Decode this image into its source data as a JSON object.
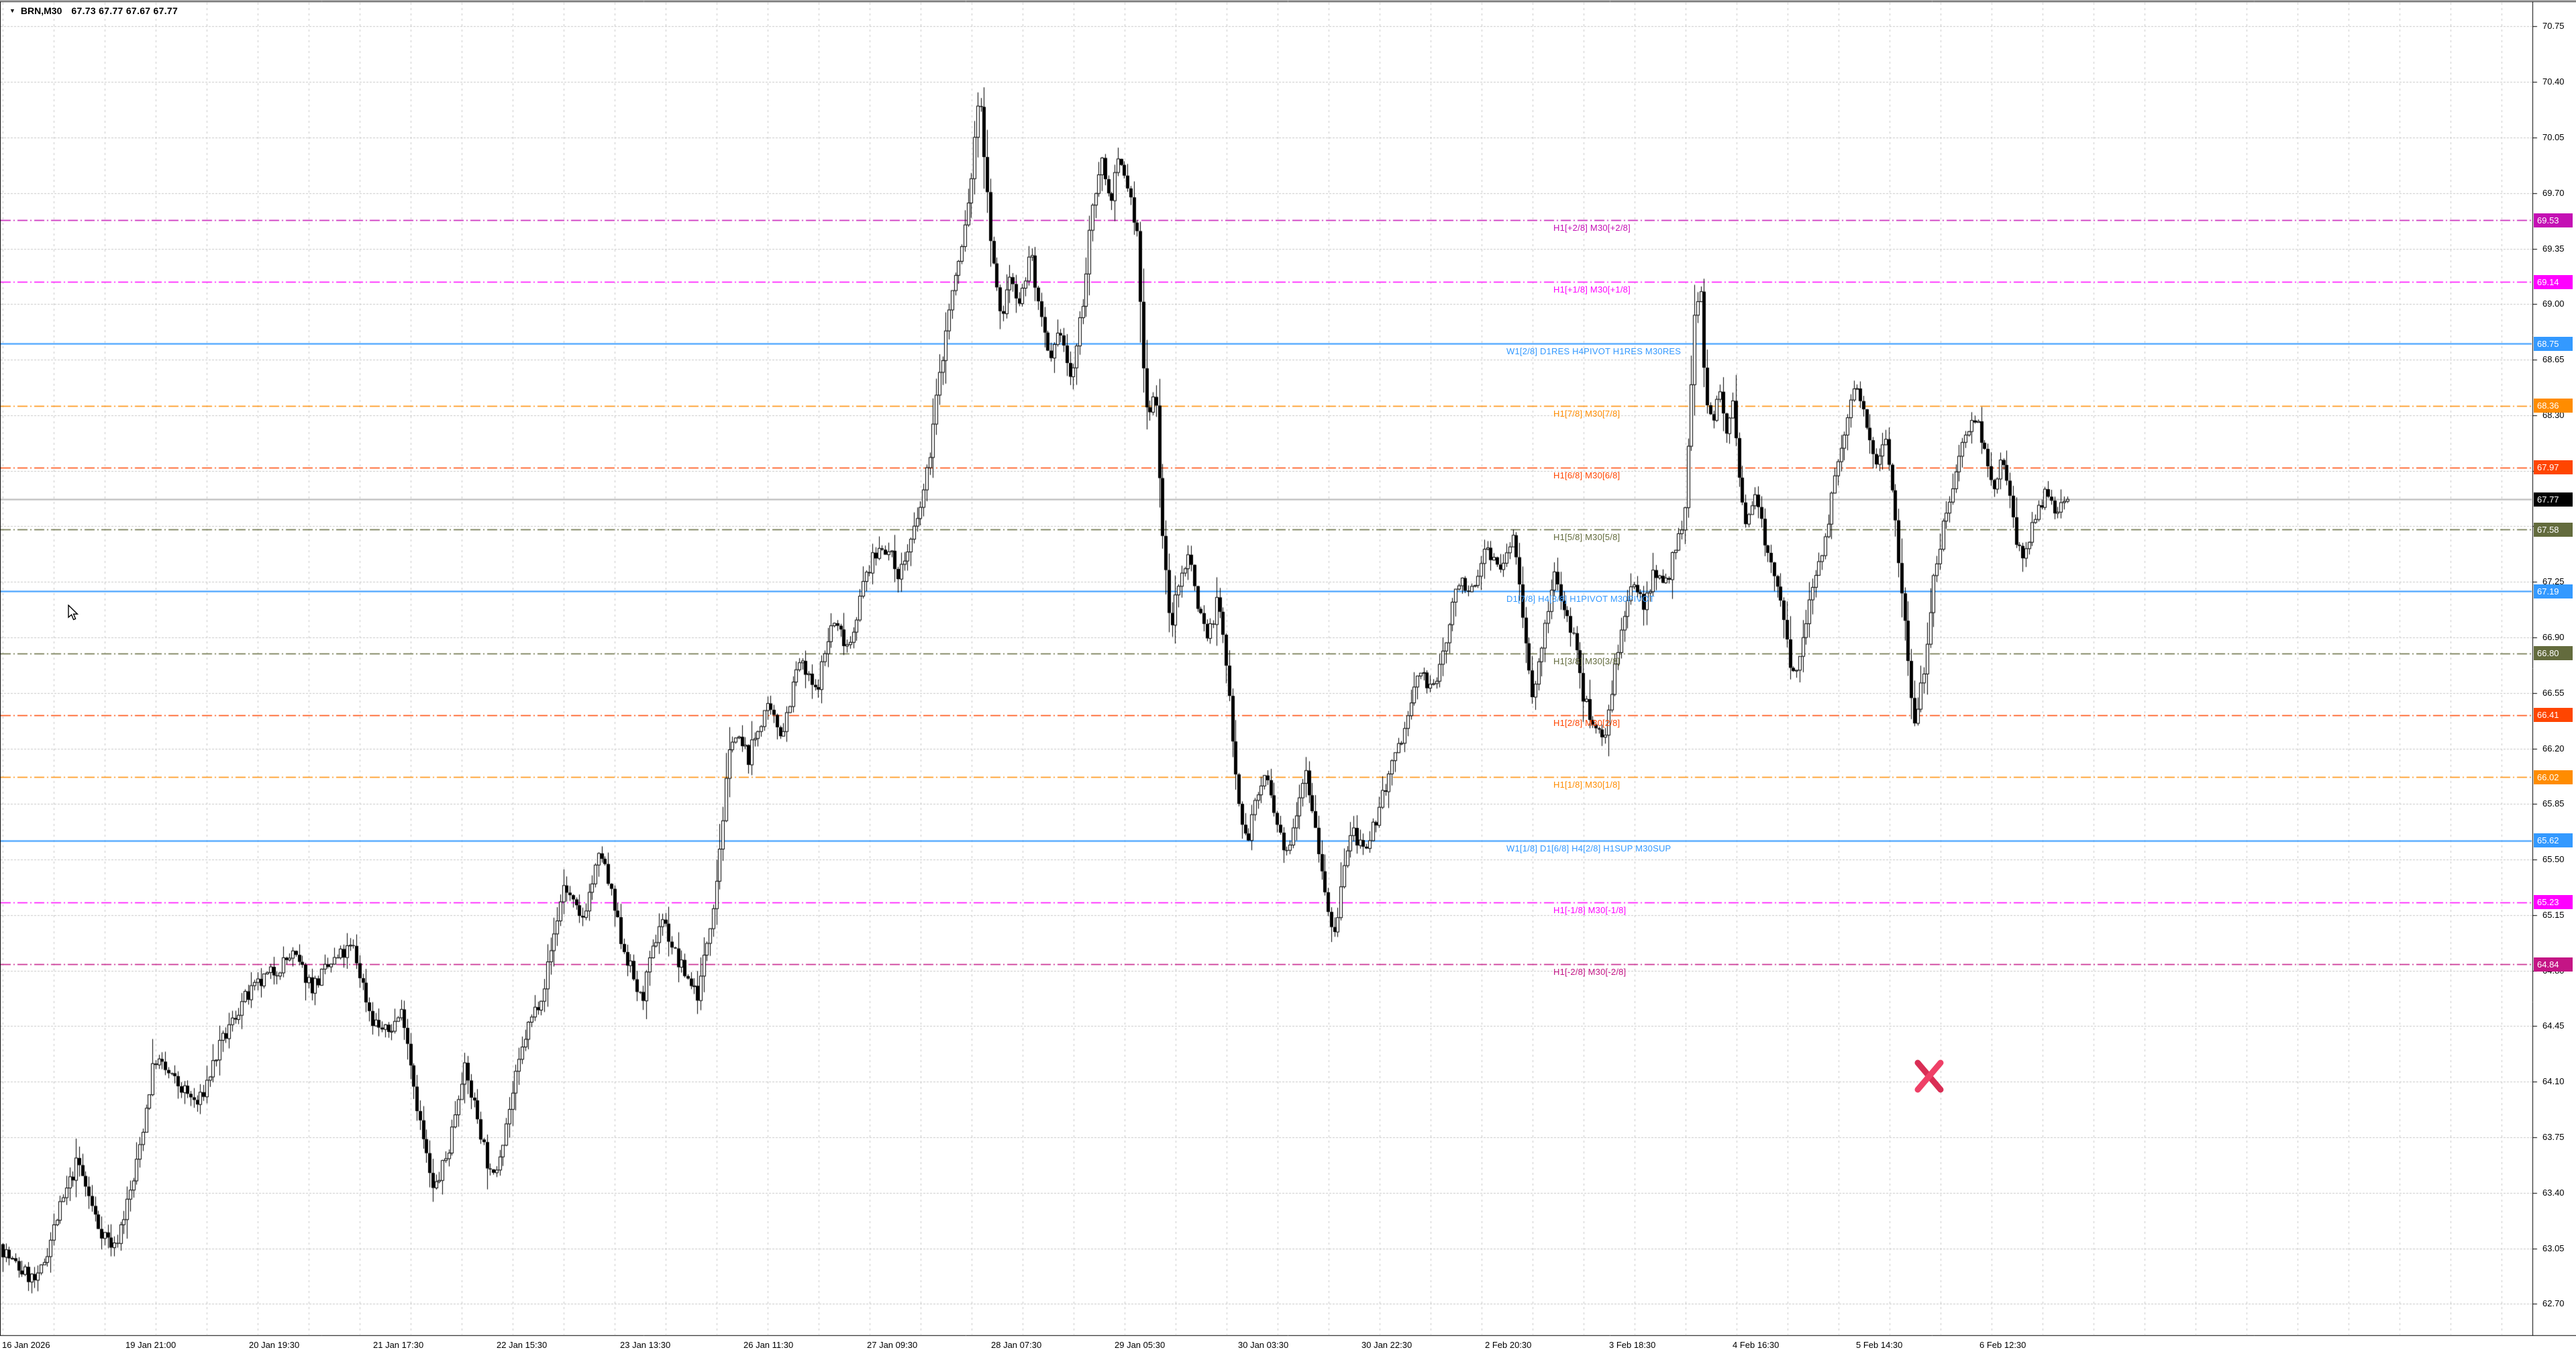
{
  "window": {
    "dropdown_icon": "▼",
    "symbol_period": "BRN,M30",
    "ohlc_text": "67.73 67.77 67.67 67.77"
  },
  "price_axis": {
    "ticks": [
      "70.75",
      "70.40",
      "70.05",
      "69.70",
      "69.35",
      "69.00",
      "68.65",
      "68.30",
      "67.95",
      "67.60",
      "67.25",
      "66.90",
      "66.55",
      "66.20",
      "65.85",
      "65.50",
      "65.15",
      "64.80",
      "64.45",
      "64.10",
      "63.75",
      "63.40",
      "63.05",
      "62.70"
    ]
  },
  "time_axis": {
    "labels": [
      "16 Jan 2026",
      "19 Jan 21:00",
      "20 Jan 19:30",
      "21 Jan 17:30",
      "22 Jan 15:30",
      "23 Jan 13:30",
      "26 Jan 11:30",
      "27 Jan 09:30",
      "28 Jan 07:30",
      "29 Jan 05:30",
      "30 Jan 03:30",
      "30 Jan 22:30",
      "2 Feb 20:30",
      "3 Feb 18:30",
      "4 Feb 16:30",
      "5 Feb 14:30",
      "6 Feb 12:30"
    ]
  },
  "levels": [
    {
      "price": 69.53,
      "badge": "69.53",
      "label": "H1[+2/8] M30[+2/8]",
      "color": "#c40fb4",
      "style": "dashdot"
    },
    {
      "price": 69.14,
      "badge": "69.14",
      "label": "H1[+1/8] M30[+1/8]",
      "color": "#ff00ff",
      "style": "dashdot"
    },
    {
      "price": 68.75,
      "badge": "68.75",
      "label": "W1[2/8] D1RES H4PIVOT H1RES M30RES",
      "color": "#3399ff",
      "style": "solid"
    },
    {
      "price": 68.36,
      "badge": "68.36",
      "label": "H1[7/8] M30[7/8]",
      "color": "#ff8c00",
      "style": "dashdot"
    },
    {
      "price": 67.97,
      "badge": "67.97",
      "label": "H1[6/8] M30[6/8]",
      "color": "#ff4500",
      "style": "dashdot"
    },
    {
      "price": 67.58,
      "badge": "67.58",
      "label": "H1[5/8] M30[5/8]",
      "color": "#636b3d",
      "style": "dashdot"
    },
    {
      "price": 67.19,
      "badge": "67.19",
      "label": "D1[7/8] H4[3/8] H1PIVOT M30PIVOT",
      "color": "#3399ff",
      "style": "solid"
    },
    {
      "price": 66.8,
      "badge": "66.80",
      "label": "H1[3/8] M30[3/8]",
      "color": "#636b3d",
      "style": "dashdot"
    },
    {
      "price": 66.41,
      "badge": "66.41",
      "label": "H1[2/8] M30[2/8]",
      "color": "#ff4500",
      "style": "dashdot"
    },
    {
      "price": 66.02,
      "badge": "66.02",
      "label": "H1[1/8] M30[1/8]",
      "color": "#ff8c00",
      "style": "dashdot"
    },
    {
      "price": 65.62,
      "badge": "65.62",
      "label": "W1[1/8] D1[6/8] H4[2/8] H1SUP M30SUP",
      "color": "#3399ff",
      "style": "solid"
    },
    {
      "price": 65.23,
      "badge": "65.23",
      "label": "H1[-1/8] M30[-1/8]",
      "color": "#ff00ff",
      "style": "dashdot"
    },
    {
      "price": 64.84,
      "badge": "64.84",
      "label": "H1[-2/8] M30[-2/8]",
      "color": "#c41585",
      "style": "dashdot"
    }
  ],
  "current_price": {
    "value": "67.77",
    "badge_color": "#000000",
    "line_color": "#b8b8b8"
  },
  "marker": {
    "type": "x-cross",
    "color": "#e8365e"
  },
  "chart_data": {
    "type": "candlestick",
    "title": "BRN,M30",
    "symbol": "BRN",
    "period": "M30",
    "ohlc_current": {
      "open": 67.73,
      "high": 67.77,
      "low": 67.67,
      "close": 67.77
    },
    "ylim": [
      62.7,
      70.75
    ],
    "y_tick_step": 0.35,
    "x_range": [
      "16 Jan 2026",
      "6 Feb 12:30"
    ],
    "grid": true,
    "path_waypoints": [
      [
        0,
        63.1
      ],
      [
        25,
        62.95
      ],
      [
        60,
        62.83
      ],
      [
        90,
        63.25
      ],
      [
        120,
        63.6
      ],
      [
        150,
        63.2
      ],
      [
        175,
        63.05
      ],
      [
        205,
        63.5
      ],
      [
        235,
        64.25
      ],
      [
        265,
        64.1
      ],
      [
        300,
        63.95
      ],
      [
        330,
        64.3
      ],
      [
        365,
        64.6
      ],
      [
        400,
        64.75
      ],
      [
        440,
        64.9
      ],
      [
        470,
        64.7
      ],
      [
        500,
        64.85
      ],
      [
        530,
        64.95
      ],
      [
        558,
        64.5
      ],
      [
        580,
        64.4
      ],
      [
        605,
        64.55
      ],
      [
        628,
        63.9
      ],
      [
        650,
        63.4
      ],
      [
        672,
        63.65
      ],
      [
        695,
        64.2
      ],
      [
        715,
        63.9
      ],
      [
        738,
        63.45
      ],
      [
        762,
        63.9
      ],
      [
        788,
        64.4
      ],
      [
        815,
        64.7
      ],
      [
        845,
        65.35
      ],
      [
        870,
        65.1
      ],
      [
        900,
        65.55
      ],
      [
        930,
        65.0
      ],
      [
        960,
        64.6
      ],
      [
        990,
        65.15
      ],
      [
        1015,
        64.85
      ],
      [
        1045,
        64.65
      ],
      [
        1070,
        65.3
      ],
      [
        1095,
        66.3
      ],
      [
        1120,
        66.15
      ],
      [
        1145,
        66.45
      ],
      [
        1170,
        66.3
      ],
      [
        1195,
        66.75
      ],
      [
        1220,
        66.55
      ],
      [
        1245,
        67.0
      ],
      [
        1270,
        66.85
      ],
      [
        1295,
        67.3
      ],
      [
        1320,
        67.5
      ],
      [
        1345,
        67.3
      ],
      [
        1370,
        67.6
      ],
      [
        1385,
        67.9
      ],
      [
        1400,
        68.4
      ],
      [
        1420,
        69.0
      ],
      [
        1440,
        69.4
      ],
      [
        1455,
        69.9
      ],
      [
        1464,
        70.42
      ],
      [
        1475,
        69.7
      ],
      [
        1487,
        69.15
      ],
      [
        1497,
        68.9
      ],
      [
        1510,
        69.2
      ],
      [
        1525,
        69.0
      ],
      [
        1540,
        69.35
      ],
      [
        1555,
        68.9
      ],
      [
        1570,
        68.6
      ],
      [
        1585,
        68.85
      ],
      [
        1600,
        68.5
      ],
      [
        1615,
        68.9
      ],
      [
        1630,
        69.5
      ],
      [
        1645,
        69.95
      ],
      [
        1658,
        69.65
      ],
      [
        1672,
        69.9
      ],
      [
        1685,
        69.75
      ],
      [
        1700,
        69.4
      ],
      [
        1708,
        68.6
      ],
      [
        1716,
        68.3
      ],
      [
        1726,
        68.5
      ],
      [
        1736,
        67.6
      ],
      [
        1748,
        66.95
      ],
      [
        1760,
        67.2
      ],
      [
        1775,
        67.45
      ],
      [
        1790,
        67.1
      ],
      [
        1805,
        66.9
      ],
      [
        1820,
        67.15
      ],
      [
        1835,
        66.6
      ],
      [
        1850,
        65.9
      ],
      [
        1862,
        65.6
      ],
      [
        1875,
        65.85
      ],
      [
        1890,
        66.05
      ],
      [
        1905,
        65.75
      ],
      [
        1920,
        65.5
      ],
      [
        1935,
        65.8
      ],
      [
        1950,
        66.1
      ],
      [
        1965,
        65.7
      ],
      [
        1980,
        65.3
      ],
      [
        1992,
        64.95
      ],
      [
        2005,
        65.4
      ],
      [
        2020,
        65.7
      ],
      [
        2040,
        65.5
      ],
      [
        2060,
        65.85
      ],
      [
        2080,
        66.1
      ],
      [
        2100,
        66.35
      ],
      [
        2120,
        66.7
      ],
      [
        2140,
        66.55
      ],
      [
        2160,
        66.9
      ],
      [
        2180,
        67.3
      ],
      [
        2200,
        67.15
      ],
      [
        2220,
        67.5
      ],
      [
        2240,
        67.3
      ],
      [
        2260,
        67.55
      ],
      [
        2275,
        67.0
      ],
      [
        2290,
        66.5
      ],
      [
        2305,
        66.9
      ],
      [
        2320,
        67.3
      ],
      [
        2335,
        67.1
      ],
      [
        2350,
        66.9
      ],
      [
        2365,
        66.5
      ],
      [
        2382,
        66.35
      ],
      [
        2395,
        66.25
      ],
      [
        2410,
        66.7
      ],
      [
        2425,
        67.0
      ],
      [
        2440,
        67.25
      ],
      [
        2455,
        67.1
      ],
      [
        2470,
        67.35
      ],
      [
        2485,
        67.2
      ],
      [
        2500,
        67.45
      ],
      [
        2515,
        67.6
      ],
      [
        2528,
        68.8
      ],
      [
        2538,
        69.2
      ],
      [
        2546,
        68.4
      ],
      [
        2556,
        68.25
      ],
      [
        2566,
        68.5
      ],
      [
        2576,
        68.2
      ],
      [
        2586,
        68.4
      ],
      [
        2596,
        67.9
      ],
      [
        2606,
        67.6
      ],
      [
        2620,
        67.85
      ],
      [
        2635,
        67.5
      ],
      [
        2650,
        67.3
      ],
      [
        2665,
        66.9
      ],
      [
        2680,
        66.6
      ],
      [
        2695,
        67.0
      ],
      [
        2710,
        67.3
      ],
      [
        2725,
        67.55
      ],
      [
        2740,
        67.9
      ],
      [
        2755,
        68.2
      ],
      [
        2770,
        68.5
      ],
      [
        2785,
        68.3
      ],
      [
        2800,
        68.0
      ],
      [
        2815,
        68.2
      ],
      [
        2830,
        67.6
      ],
      [
        2845,
        66.9
      ],
      [
        2858,
        66.35
      ],
      [
        2872,
        66.7
      ],
      [
        2886,
        67.3
      ],
      [
        2900,
        67.6
      ],
      [
        2915,
        67.9
      ],
      [
        2930,
        68.1
      ],
      [
        2945,
        68.35
      ],
      [
        2960,
        68.1
      ],
      [
        2975,
        67.85
      ],
      [
        2990,
        68.05
      ],
      [
        3005,
        67.6
      ],
      [
        3020,
        67.35
      ],
      [
        3035,
        67.6
      ],
      [
        3050,
        67.8
      ],
      [
        3065,
        67.7
      ],
      [
        3084,
        67.77
      ]
    ]
  }
}
